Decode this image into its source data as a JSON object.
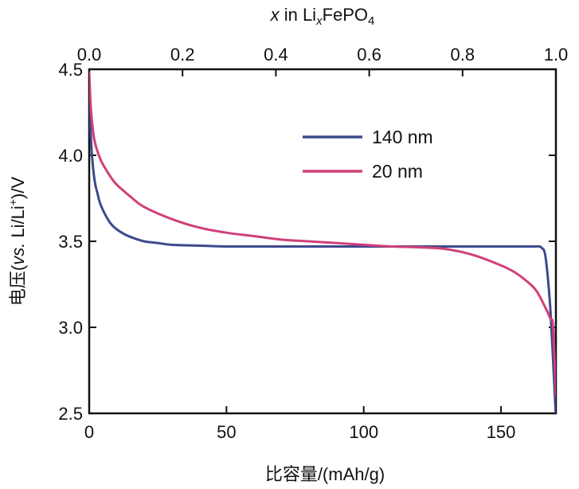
{
  "chart_data": {
    "type": "line",
    "xlabel_bottom": "比容量/(mAh/g)",
    "xlabel_top_parts": {
      "var": "x",
      "mid": " in Li",
      "sub_x": "x",
      "tail": "FePO",
      "sub_4": "4"
    },
    "ylabel_parts": {
      "pre": "电压(",
      "italic": "vs.",
      "mid": " Li/Li",
      "sup": "+",
      "post": ")/V"
    },
    "xlim": [
      0,
      170
    ],
    "ylim": [
      2.5,
      4.5
    ],
    "x_ticks": [
      0,
      50,
      100,
      150
    ],
    "x_tick_labels": [
      "0",
      "50",
      "100",
      "150"
    ],
    "y_ticks": [
      2.5,
      3.0,
      3.5,
      4.0,
      4.5
    ],
    "y_tick_labels": [
      "2.5",
      "3.0",
      "3.5",
      "4.0",
      "4.5"
    ],
    "top_xlim": [
      0,
      1.0
    ],
    "top_ticks": [
      0,
      0.2,
      0.4,
      0.6,
      0.8,
      1.0
    ],
    "top_tick_labels": [
      "0.0",
      "0.2",
      "0.4",
      "0.6",
      "0.8",
      "1.0"
    ],
    "legend_position": "upper-right",
    "series": [
      {
        "name": "140 nm",
        "color": "#3d4a8c",
        "x": [
          0,
          0.5,
          1,
          2,
          3,
          4,
          6,
          8,
          10,
          13,
          16,
          20,
          25,
          30,
          40,
          50,
          70,
          90,
          110,
          130,
          150,
          158,
          162,
          164,
          165,
          166,
          167,
          168,
          169,
          170
        ],
        "y": [
          4.35,
          4.15,
          4.0,
          3.85,
          3.78,
          3.72,
          3.65,
          3.6,
          3.57,
          3.54,
          3.52,
          3.5,
          3.49,
          3.48,
          3.475,
          3.47,
          3.47,
          3.47,
          3.47,
          3.47,
          3.47,
          3.47,
          3.47,
          3.47,
          3.46,
          3.43,
          3.3,
          3.1,
          2.8,
          2.45
        ]
      },
      {
        "name": "20 nm",
        "color": "#d0407a",
        "x": [
          0,
          0.5,
          1,
          2,
          4,
          6,
          8,
          10,
          15,
          20,
          30,
          40,
          50,
          60,
          70,
          80,
          90,
          100,
          110,
          120,
          130,
          140,
          150,
          155,
          160,
          163,
          166,
          168,
          169,
          170
        ],
        "y": [
          4.48,
          4.3,
          4.2,
          4.08,
          3.98,
          3.92,
          3.87,
          3.83,
          3.76,
          3.7,
          3.63,
          3.58,
          3.55,
          3.53,
          3.51,
          3.5,
          3.49,
          3.48,
          3.47,
          3.465,
          3.455,
          3.42,
          3.36,
          3.32,
          3.26,
          3.21,
          3.12,
          3.05,
          3.0,
          2.6
        ]
      }
    ]
  }
}
